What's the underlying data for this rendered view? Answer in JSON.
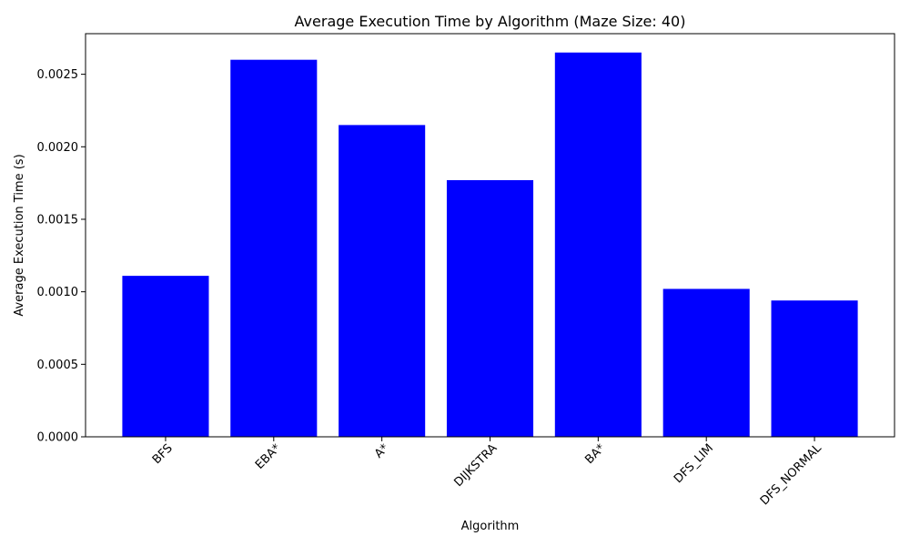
{
  "chart_data": {
    "type": "bar",
    "title": "Average Execution Time by Algorithm (Maze Size: 40)",
    "xlabel": "Algorithm",
    "ylabel": "Average Execution Time (s)",
    "categories": [
      "BFS",
      "EBA*",
      "A*",
      "DIJKSTRA",
      "BA*",
      "DFS_LIM",
      "DFS_NORMAL"
    ],
    "values": [
      0.00111,
      0.0026,
      0.00215,
      0.00177,
      0.00265,
      0.00102,
      0.00094
    ],
    "ylim": [
      0,
      0.00278
    ],
    "yticks": [
      "0.0000",
      "0.0005",
      "0.0010",
      "0.0015",
      "0.0020",
      "0.0025"
    ],
    "bar_color": "#0000ff",
    "grid": false,
    "xtick_rotation_deg": 45
  }
}
